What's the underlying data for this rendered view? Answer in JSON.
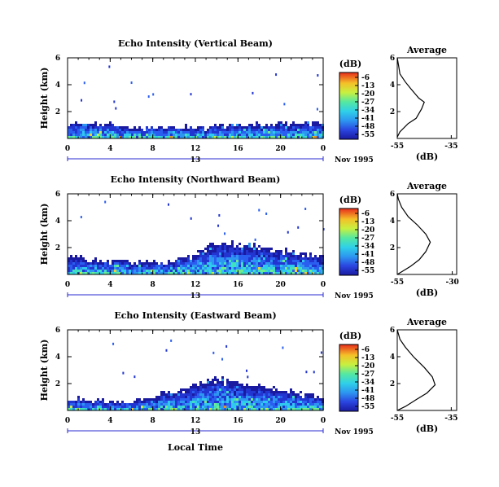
{
  "chart_data": [
    {
      "type": "heatmap",
      "title": "Echo Intensity (Vertical Beam)",
      "xlabel": "",
      "ylabel": "Height (km)",
      "xlim": [
        0,
        24
      ],
      "ylim": [
        0,
        6
      ],
      "x_ticks": [
        "0",
        "4",
        "8",
        "12",
        "16",
        "20",
        "0"
      ],
      "y_ticks": [
        "6",
        "4",
        "2"
      ],
      "date_label": "13",
      "month_year": "Nov 1995",
      "colorbar": {
        "unit": "(dB)",
        "ticks": [
          "-6",
          "-13",
          "-20",
          "-27",
          "-34",
          "-41",
          "-48",
          "-55"
        ],
        "range": [
          -55,
          -6
        ]
      },
      "echo_top_km": [
        1.3,
        1.3,
        1.2,
        1.25,
        1.2,
        1.1,
        0.95,
        0.95,
        1.0,
        1.0,
        1.05,
        1.0,
        1.0,
        0.95,
        1.05,
        1.1,
        1.15,
        1.2,
        1.15,
        1.1,
        1.2,
        1.2,
        1.25,
        1.3,
        1.3
      ],
      "profile": {
        "title": "Average",
        "xlabel": "(dB)",
        "x_ticks": [
          "-55",
          "-35"
        ],
        "y_ticks": [
          "6",
          "4",
          "2"
        ],
        "xlim": [
          -55,
          -33
        ],
        "ylim": [
          0,
          6
        ],
        "points": [
          [
            -55,
            0.1
          ],
          [
            -54,
            0.5
          ],
          [
            -51,
            1.1
          ],
          [
            -48,
            1.5
          ],
          [
            -46,
            2.2
          ],
          [
            -45,
            2.7
          ],
          [
            -47,
            3.0
          ],
          [
            -50,
            3.7
          ],
          [
            -52,
            4.2
          ],
          [
            -54,
            4.8
          ],
          [
            -54.5,
            5.4
          ],
          [
            -55,
            6.0
          ]
        ]
      }
    },
    {
      "type": "heatmap",
      "title": "Echo Intensity (Northward Beam)",
      "xlabel": "",
      "ylabel": "Height (km)",
      "xlim": [
        0,
        24
      ],
      "ylim": [
        0,
        6
      ],
      "x_ticks": [
        "0",
        "4",
        "8",
        "12",
        "16",
        "20",
        "0"
      ],
      "y_ticks": [
        "6",
        "4",
        "2"
      ],
      "date_label": "13",
      "month_year": "Nov 1995",
      "colorbar": {
        "unit": "(dB)",
        "ticks": [
          "-6",
          "-13",
          "-20",
          "-27",
          "-34",
          "-41",
          "-48",
          "-55"
        ],
        "range": [
          -55,
          -6
        ]
      },
      "echo_top_km": [
        1.4,
        1.4,
        1.2,
        1.1,
        1.2,
        1.1,
        1.0,
        1.0,
        1.05,
        1.1,
        1.2,
        1.3,
        1.8,
        2.2,
        2.4,
        2.6,
        2.4,
        2.5,
        2.2,
        2.0,
        1.8,
        1.9,
        1.7,
        1.5,
        1.5
      ],
      "profile": {
        "title": "Average",
        "xlabel": "(dB)",
        "x_ticks": [
          "-55",
          "-30"
        ],
        "y_ticks": [
          "6",
          "4",
          "2"
        ],
        "xlim": [
          -55,
          -28
        ],
        "ylim": [
          0,
          6
        ],
        "points": [
          [
            -55,
            0.0
          ],
          [
            -53,
            0.2
          ],
          [
            -49,
            0.6
          ],
          [
            -45,
            1.1
          ],
          [
            -42,
            1.7
          ],
          [
            -40,
            2.4
          ],
          [
            -42,
            3.0
          ],
          [
            -46,
            3.7
          ],
          [
            -50,
            4.3
          ],
          [
            -53,
            5.0
          ],
          [
            -54.5,
            5.6
          ],
          [
            -55,
            6.0
          ]
        ]
      }
    },
    {
      "type": "heatmap",
      "title": "Echo Intensity (Eastward Beam)",
      "xlabel": "Local Time",
      "ylabel": "Height (km)",
      "xlim": [
        0,
        24
      ],
      "ylim": [
        0,
        6
      ],
      "x_ticks": [
        "0",
        "4",
        "8",
        "12",
        "16",
        "20",
        "0"
      ],
      "y_ticks": [
        "6",
        "4",
        "2"
      ],
      "date_label": "13",
      "month_year": "Nov 1995",
      "colorbar": {
        "unit": "(dB)",
        "ticks": [
          "-6",
          "-13",
          "-20",
          "-27",
          "-34",
          "-41",
          "-48",
          "-55"
        ],
        "range": [
          -55,
          -6
        ]
      },
      "echo_top_km": [
        1.0,
        1.0,
        0.8,
        0.9,
        0.7,
        0.75,
        0.8,
        1.0,
        1.2,
        1.4,
        1.5,
        1.8,
        2.0,
        2.3,
        2.5,
        2.4,
        2.2,
        2.0,
        1.9,
        1.8,
        1.7,
        1.5,
        1.3,
        1.2,
        1.1
      ],
      "profile": {
        "title": "Average",
        "xlabel": "(dB)",
        "x_ticks": [
          "-55",
          "-35"
        ],
        "y_ticks": [
          "6",
          "4",
          "2"
        ],
        "xlim": [
          -55,
          -33
        ],
        "ylim": [
          0,
          6
        ],
        "points": [
          [
            -55,
            0.0
          ],
          [
            -52,
            0.3
          ],
          [
            -48,
            0.8
          ],
          [
            -44,
            1.3
          ],
          [
            -41,
            1.9
          ],
          [
            -42,
            2.5
          ],
          [
            -45,
            3.2
          ],
          [
            -49,
            4.0
          ],
          [
            -52,
            4.7
          ],
          [
            -54,
            5.3
          ],
          [
            -55,
            6.0
          ]
        ]
      }
    }
  ]
}
